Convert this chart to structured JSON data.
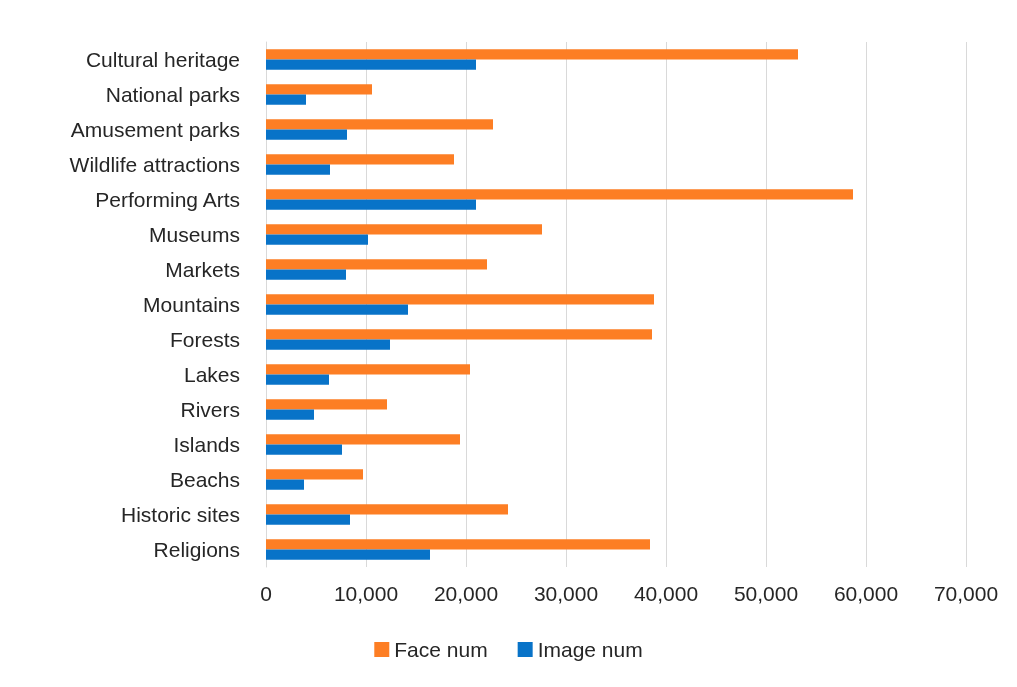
{
  "chart_data": {
    "type": "bar",
    "orientation": "horizontal",
    "categories": [
      "Cultural heritage",
      "National parks",
      "Amusement parks",
      "Wildlife attractions",
      "Performing Arts",
      "Museums",
      "Markets",
      "Mountains",
      "Forests",
      "Lakes",
      "Rivers",
      "Islands",
      "Beachs",
      "Historic sites",
      "Religions"
    ],
    "series": [
      {
        "name": "Face num",
        "color": "#fd7e24",
        "values": [
          53200,
          10600,
          22700,
          18800,
          58700,
          27600,
          22100,
          38800,
          38600,
          20400,
          12100,
          19400,
          9700,
          24200,
          38400
        ]
      },
      {
        "name": "Image num",
        "color": "#0873c8",
        "values": [
          21000,
          4000,
          8100,
          6400,
          21000,
          10200,
          8000,
          14200,
          12400,
          6300,
          4800,
          7600,
          3800,
          8400,
          16400
        ]
      }
    ],
    "xlim": [
      0,
      70000
    ],
    "xticks": [
      0,
      {
        "value": 10000,
        "label": "10,000"
      },
      {
        "value": 20000,
        "label": "20,000"
      },
      {
        "value": 30000,
        "label": "30,000"
      },
      {
        "value": 40000,
        "label": "40,000"
      },
      {
        "value": 50000,
        "label": "50,000"
      },
      {
        "value": 60000,
        "label": "60,000"
      },
      {
        "value": 70000,
        "label": "70,000"
      }
    ],
    "grid": "x",
    "legend": "bottom"
  }
}
